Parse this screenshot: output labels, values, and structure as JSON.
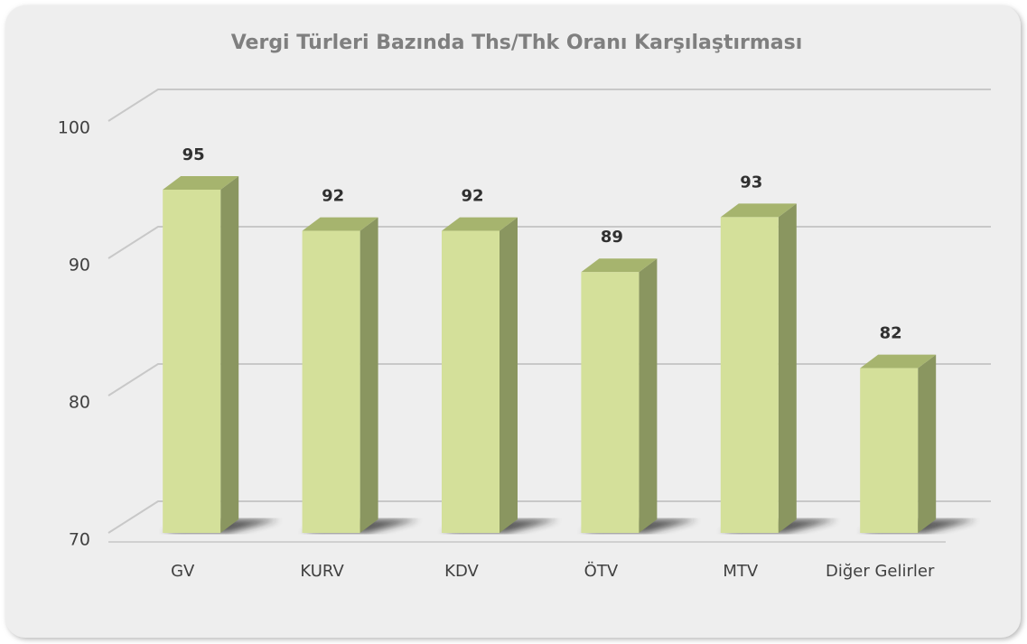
{
  "chart_data": {
    "type": "bar",
    "title": "Vergi Türleri Bazında Ths/Thk Oranı Karşılaştırması",
    "categories": [
      "GV",
      "KURV",
      "KDV",
      "ÖTV",
      "MTV",
      "Diğer Gelirler"
    ],
    "values": [
      95,
      92,
      92,
      89,
      93,
      82
    ],
    "color": "#d4e09a",
    "ylim": [
      70,
      100
    ],
    "yticks": [
      70,
      80,
      90,
      100
    ],
    "grid": true
  }
}
